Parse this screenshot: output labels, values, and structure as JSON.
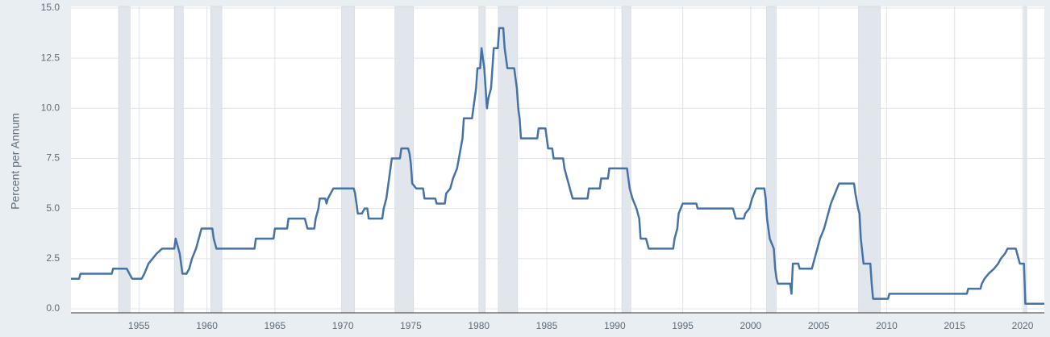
{
  "chart_data": {
    "type": "line",
    "ylabel": "Percent per Annum",
    "color": "#4572a7",
    "grid": true,
    "xlim": [
      1950,
      2021.6
    ],
    "ylim": [
      0,
      15
    ],
    "xticks": [
      1955,
      1960,
      1965,
      1970,
      1975,
      1980,
      1985,
      1990,
      1995,
      2000,
      2005,
      2010,
      2015,
      2020
    ],
    "yticks": [
      {
        "value": 0,
        "label": "0.0"
      },
      2.5,
      {
        "value": 5,
        "label": "5.0"
      },
      7.5,
      {
        "value": 10,
        "label": "10.0"
      },
      12.5,
      {
        "value": 15,
        "label": "15.0"
      }
    ],
    "recessions": [
      [
        1953.5,
        1954.35
      ],
      [
        1957.6,
        1958.26
      ],
      [
        1960.28,
        1961.1
      ],
      [
        1969.9,
        1970.86
      ],
      [
        1973.83,
        1975.2
      ],
      [
        1980.0,
        1980.48
      ],
      [
        1981.43,
        1982.86
      ],
      [
        1990.52,
        1991.18
      ],
      [
        2001.16,
        2001.87
      ],
      [
        2007.93,
        2009.53
      ],
      [
        2020.1,
        2020.3
      ]
    ],
    "x": [
      1950.0,
      1950.6,
      1950.7,
      1953.0,
      1953.1,
      1954.1,
      1954.3,
      1954.5,
      1955.2,
      1955.4,
      1955.7,
      1956.0,
      1956.3,
      1956.7,
      1957.6,
      1957.7,
      1958.0,
      1958.1,
      1958.2,
      1958.5,
      1958.7,
      1958.9,
      1959.2,
      1959.4,
      1959.6,
      1960.4,
      1960.5,
      1960.7,
      1963.5,
      1963.6,
      1964.9,
      1965.0,
      1965.9,
      1966.0,
      1967.2,
      1967.4,
      1967.9,
      1968.0,
      1968.2,
      1968.3,
      1968.7,
      1968.8,
      1968.9,
      1969.3,
      1970.8,
      1970.9,
      1971.0,
      1971.1,
      1971.4,
      1971.6,
      1971.8,
      1971.9,
      1972.9,
      1973.0,
      1973.2,
      1973.4,
      1973.6,
      1974.2,
      1974.3,
      1974.8,
      1974.9,
      1975.0,
      1975.1,
      1975.4,
      1975.9,
      1976.0,
      1976.8,
      1976.9,
      1977.5,
      1977.6,
      1977.9,
      1978.1,
      1978.4,
      1978.6,
      1978.8,
      1978.9,
      1979.5,
      1979.6,
      1979.7,
      1979.8,
      1979.9,
      1980.1,
      1980.2,
      1980.4,
      1980.5,
      1980.6,
      1980.7,
      1980.9,
      1981.0,
      1981.1,
      1981.4,
      1981.5,
      1981.8,
      1981.9,
      1982.1,
      1982.6,
      1982.7,
      1982.8,
      1982.9,
      1983.0,
      1983.1,
      1984.3,
      1984.4,
      1984.9,
      1985.0,
      1985.1,
      1985.4,
      1985.5,
      1986.2,
      1986.3,
      1986.5,
      1986.7,
      1986.9,
      1988.0,
      1988.1,
      1988.9,
      1989.0,
      1989.5,
      1989.6,
      1990.9,
      1991.0,
      1991.1,
      1991.3,
      1991.6,
      1991.8,
      1991.9,
      1992.3,
      1992.5,
      1994.3,
      1994.4,
      1994.6,
      1994.7,
      1995.0,
      1996.0,
      1996.1,
      1998.7,
      1998.8,
      1998.9,
      1999.5,
      1999.6,
      1999.9,
      2000.1,
      2000.4,
      2001.0,
      2001.1,
      2001.2,
      2001.4,
      2001.7,
      2001.8,
      2001.9,
      2002.0,
      2002.9,
      2003.0,
      2003.1,
      2003.5,
      2003.6,
      2004.5,
      2004.7,
      2004.9,
      2005.1,
      2005.4,
      2005.6,
      2005.9,
      2006.2,
      2006.5,
      2007.6,
      2007.7,
      2007.9,
      2008.0,
      2008.1,
      2008.3,
      2008.8,
      2008.9,
      2009.0,
      2010.1,
      2010.2,
      2015.9,
      2016.0,
      2016.9,
      2017.0,
      2017.2,
      2017.5,
      2017.9,
      2018.2,
      2018.4,
      2018.7,
      2018.9,
      2019.5,
      2019.6,
      2019.7,
      2019.8,
      2020.1,
      2020.2,
      2021.6
    ],
    "values": [
      1.5,
      1.5,
      1.75,
      1.75,
      2.0,
      2.0,
      1.75,
      1.5,
      1.5,
      1.75,
      2.25,
      2.5,
      2.75,
      3.0,
      3.0,
      3.5,
      2.75,
      2.25,
      1.75,
      1.75,
      2.0,
      2.5,
      3.0,
      3.5,
      4.0,
      4.0,
      3.5,
      3.0,
      3.0,
      3.5,
      3.5,
      4.0,
      4.0,
      4.5,
      4.5,
      4.0,
      4.0,
      4.5,
      5.0,
      5.5,
      5.5,
      5.25,
      5.5,
      6.0,
      6.0,
      5.75,
      5.25,
      4.75,
      4.75,
      5.0,
      5.0,
      4.5,
      4.5,
      5.0,
      5.5,
      6.5,
      7.5,
      7.5,
      8.0,
      8.0,
      7.75,
      7.25,
      6.25,
      6.0,
      6.0,
      5.5,
      5.5,
      5.25,
      5.25,
      5.75,
      6.0,
      6.5,
      7.0,
      7.75,
      8.5,
      9.5,
      9.5,
      10.0,
      10.5,
      11.0,
      12.0,
      12.0,
      13.0,
      12.0,
      11.0,
      10.0,
      10.5,
      11.0,
      12.0,
      13.0,
      13.0,
      14.0,
      14.0,
      13.0,
      12.0,
      12.0,
      11.5,
      11.0,
      10.0,
      9.5,
      8.5,
      8.5,
      9.0,
      9.0,
      8.5,
      8.0,
      8.0,
      7.5,
      7.5,
      7.0,
      6.5,
      6.0,
      5.5,
      5.5,
      6.0,
      6.0,
      6.5,
      6.5,
      7.0,
      7.0,
      6.5,
      6.0,
      5.5,
      5.0,
      4.5,
      3.5,
      3.5,
      3.0,
      3.0,
      3.5,
      4.0,
      4.75,
      5.25,
      5.25,
      5.0,
      5.0,
      4.75,
      4.5,
      4.5,
      4.75,
      5.0,
      5.5,
      6.0,
      6.0,
      5.5,
      4.5,
      3.5,
      3.0,
      2.0,
      1.5,
      1.25,
      1.25,
      0.75,
      2.25,
      2.25,
      2.0,
      2.0,
      2.5,
      3.0,
      3.5,
      4.0,
      4.5,
      5.25,
      5.75,
      6.25,
      6.25,
      5.75,
      5.0,
      4.75,
      3.5,
      2.25,
      2.25,
      1.25,
      0.5,
      0.5,
      0.75,
      0.75,
      1.0,
      1.0,
      1.25,
      1.5,
      1.75,
      2.0,
      2.25,
      2.5,
      2.75,
      3.0,
      3.0,
      2.75,
      2.5,
      2.25,
      2.25,
      0.25,
      0.25
    ]
  }
}
